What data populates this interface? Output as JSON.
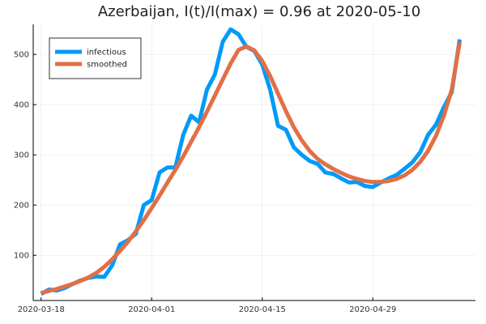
{
  "chart_data": {
    "type": "line",
    "title": "Azerbaijan,  I(t)/I(max) = 0.96 at 2020-05-10",
    "xlabel": "",
    "ylabel": "",
    "x_start": "2020-03-18",
    "x_end": "2020-05-10",
    "xlim": [
      "2020-03-17",
      "2020-05-12"
    ],
    "ylim": [
      10,
      560
    ],
    "x_ticks": [
      "2020-03-18",
      "2020-04-01",
      "2020-04-15",
      "2020-04-29"
    ],
    "y_ticks": [
      100,
      200,
      300,
      400,
      500
    ],
    "grid": true,
    "legend_position": "top-left",
    "series": [
      {
        "name": "infectious",
        "color": "#009af9",
        "values": [
          23,
          32,
          30,
          35,
          43,
          50,
          55,
          58,
          57,
          80,
          122,
          130,
          143,
          200,
          210,
          265,
          275,
          275,
          340,
          378,
          365,
          430,
          460,
          525,
          550,
          540,
          515,
          507,
          480,
          430,
          358,
          350,
          315,
          300,
          288,
          282,
          265,
          262,
          253,
          245,
          246,
          238,
          236,
          245,
          253,
          260,
          272,
          285,
          305,
          340,
          360,
          395,
          425,
          530
        ]
      },
      {
        "name": "smoothed",
        "color": "#e26f46",
        "values": [
          25,
          29,
          33,
          38,
          43,
          49,
          56,
          65,
          77,
          92,
          109,
          127,
          148,
          170,
          194,
          219,
          245,
          270,
          297,
          326,
          355,
          386,
          418,
          450,
          482,
          509,
          516,
          508,
          487,
          457,
          422,
          387,
          355,
          329,
          308,
          292,
          281,
          272,
          264,
          257,
          252,
          248,
          246,
          246,
          248,
          252,
          259,
          270,
          286,
          308,
          338,
          378,
          430,
          524
        ]
      }
    ]
  }
}
